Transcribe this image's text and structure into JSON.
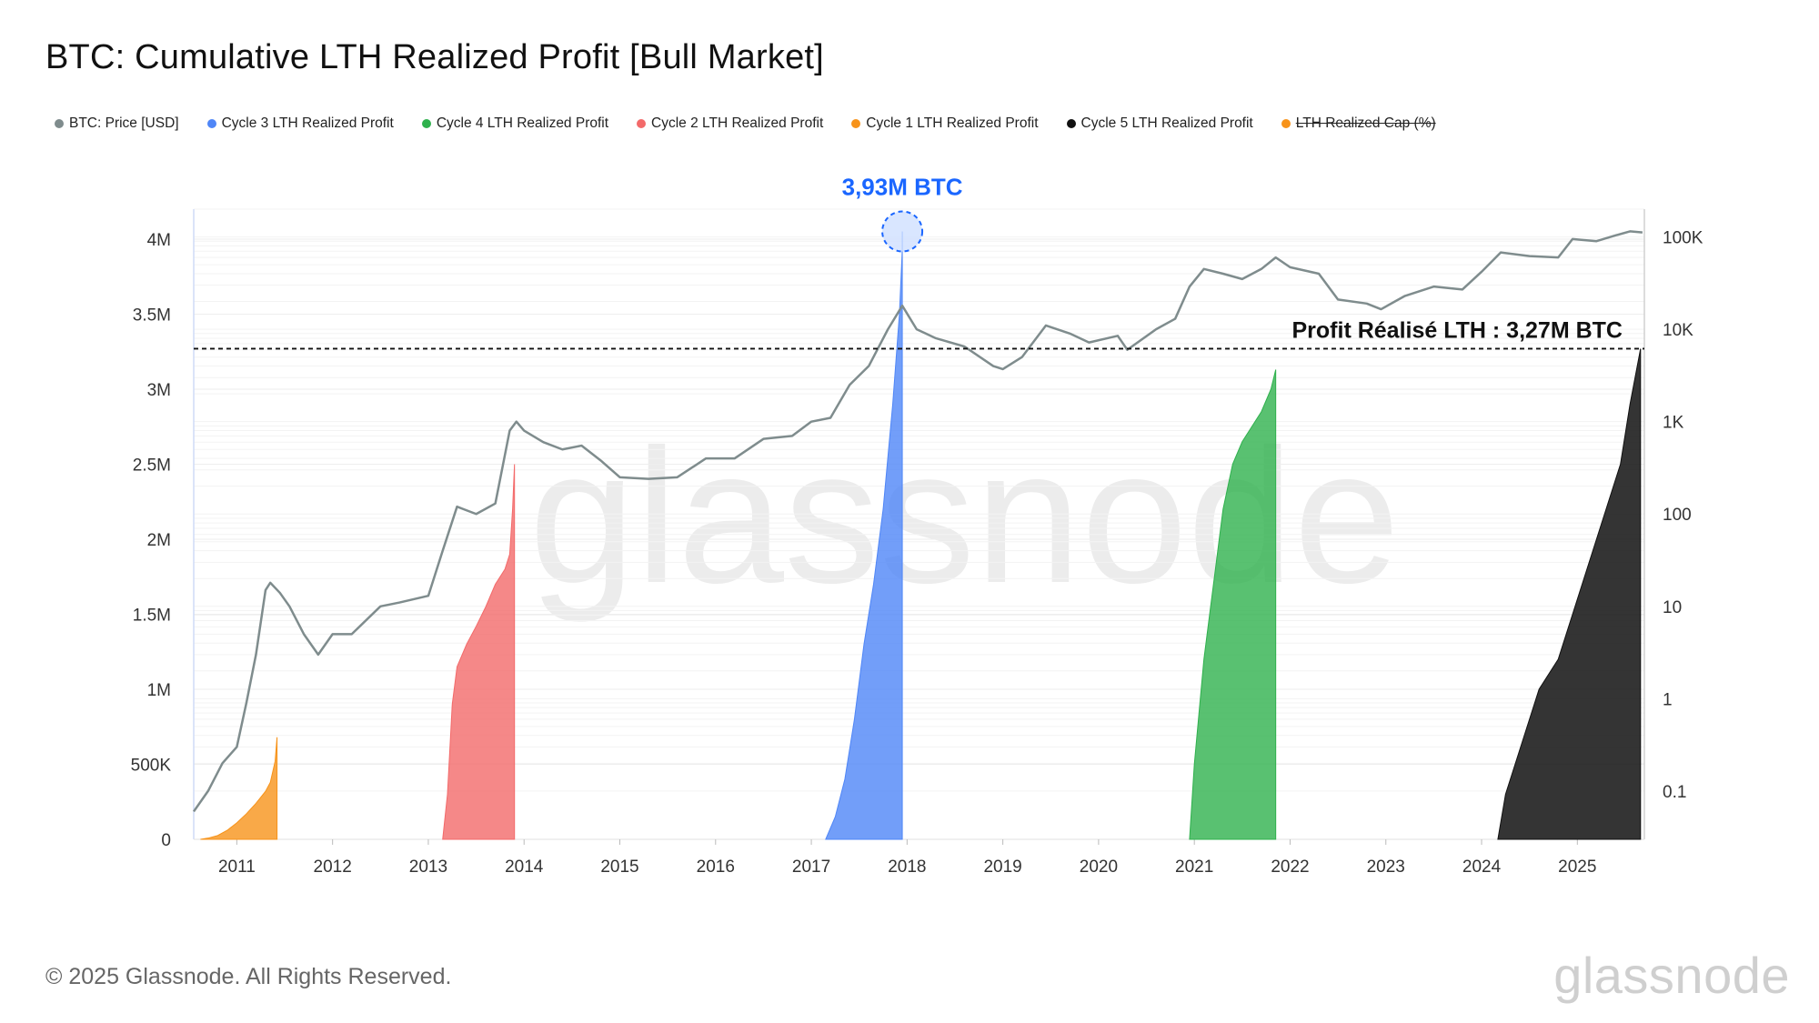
{
  "title": "BTC: Cumulative LTH Realized Profit [Bull Market]",
  "legend": [
    {
      "label": "BTC: Price [USD]",
      "color": "#7f8c8d",
      "off": false
    },
    {
      "label": "Cycle 3 LTH Realized Profit",
      "color": "#4f86f7",
      "off": false
    },
    {
      "label": "Cycle 4 LTH Realized Profit",
      "color": "#2fb14d",
      "off": false
    },
    {
      "label": "Cycle 2 LTH Realized Profit",
      "color": "#f36a6a",
      "off": false
    },
    {
      "label": "Cycle 1 LTH Realized Profit",
      "color": "#f7931a",
      "off": false
    },
    {
      "label": "Cycle 5 LTH Realized Profit",
      "color": "#111111",
      "off": false
    },
    {
      "label": "LTH Realized Cap (%)",
      "color": "#f7931a",
      "off": true
    }
  ],
  "footer": {
    "copyright": "© 2025 Glassnode. All Rights Reserved.",
    "logo": "glassnode",
    "watermark": "glassnode"
  },
  "chart_data": {
    "type": "area",
    "x_range": [
      2010.55,
      2025.7
    ],
    "y_left": {
      "range": [
        0,
        4200000
      ],
      "ticks": [
        0,
        500000,
        1000000,
        1500000,
        2000000,
        2500000,
        3000000,
        3500000,
        4000000
      ],
      "tick_labels": [
        "0",
        "500K",
        "1M",
        "1.5M",
        "2M",
        "2.5M",
        "3M",
        "3.5M",
        "4M"
      ]
    },
    "y_right": {
      "scale": "log",
      "range": [
        0.03,
        200000
      ],
      "ticks": [
        0.1,
        1,
        10,
        100,
        1000,
        10000,
        100000
      ],
      "tick_labels": [
        "0.1",
        "1",
        "10",
        "100",
        "1K",
        "10K",
        "100K"
      ]
    },
    "x_ticks": [
      2011,
      2012,
      2013,
      2014,
      2015,
      2016,
      2017,
      2018,
      2019,
      2020,
      2021,
      2022,
      2023,
      2024,
      2025
    ],
    "x_tick_labels": [
      "2011",
      "2012",
      "2013",
      "2014",
      "2015",
      "2016",
      "2017",
      "2018",
      "2019",
      "2020",
      "2021",
      "2022",
      "2023",
      "2024",
      "2025"
    ],
    "series": [
      {
        "name": "Cycle 1 LTH Realized Profit",
        "color": "#f7931a",
        "x": [
          2010.62,
          2010.7,
          2010.8,
          2010.9,
          2011.0,
          2011.1,
          2011.2,
          2011.3,
          2011.35,
          2011.4,
          2011.42
        ],
        "y": [
          0,
          8000,
          25000,
          60000,
          110000,
          170000,
          240000,
          320000,
          380000,
          520000,
          680000
        ]
      },
      {
        "name": "Cycle 2 LTH Realized Profit",
        "color": "#f36a6a",
        "x": [
          2013.15,
          2013.2,
          2013.25,
          2013.3,
          2013.4,
          2013.5,
          2013.6,
          2013.7,
          2013.8,
          2013.85,
          2013.88,
          2013.9
        ],
        "y": [
          0,
          300000,
          900000,
          1150000,
          1300000,
          1420000,
          1550000,
          1700000,
          1800000,
          1900000,
          2200000,
          2500000
        ]
      },
      {
        "name": "Cycle 3 LTH Realized Profit",
        "color": "#4f86f7",
        "x": [
          2017.15,
          2017.25,
          2017.35,
          2017.45,
          2017.55,
          2017.65,
          2017.75,
          2017.85,
          2017.92,
          2017.95
        ],
        "y": [
          0,
          150000,
          400000,
          800000,
          1300000,
          1700000,
          2200000,
          2900000,
          3500000,
          3930000
        ]
      },
      {
        "name": "Cycle 4 LTH Realized Profit",
        "color": "#2fb14d",
        "x": [
          2020.95,
          2021.0,
          2021.1,
          2021.2,
          2021.3,
          2021.4,
          2021.5,
          2021.6,
          2021.7,
          2021.8,
          2021.85
        ],
        "y": [
          0,
          500000,
          1200000,
          1700000,
          2200000,
          2500000,
          2650000,
          2750000,
          2850000,
          3000000,
          3130000
        ]
      },
      {
        "name": "Cycle 5 LTH Realized Profit",
        "color": "#111111",
        "x": [
          2024.17,
          2024.25,
          2024.4,
          2024.55,
          2024.6,
          2024.8,
          2024.95,
          2025.1,
          2025.3,
          2025.45,
          2025.55,
          2025.66
        ],
        "y": [
          0,
          300000,
          600000,
          900000,
          1000000,
          1200000,
          1500000,
          1800000,
          2200000,
          2500000,
          2900000,
          3270000
        ]
      },
      {
        "name": "BTC: Price [USD]",
        "color": "#7f8c8d",
        "axis": "right",
        "x": [
          2010.55,
          2010.7,
          2010.85,
          2011.0,
          2011.1,
          2011.2,
          2011.3,
          2011.35,
          2011.45,
          2011.55,
          2011.7,
          2011.85,
          2012.0,
          2012.2,
          2012.5,
          2012.7,
          2013.0,
          2013.15,
          2013.3,
          2013.5,
          2013.7,
          2013.85,
          2013.92,
          2014.0,
          2014.2,
          2014.4,
          2014.6,
          2014.8,
          2015.0,
          2015.3,
          2015.6,
          2015.9,
          2016.2,
          2016.5,
          2016.8,
          2017.0,
          2017.2,
          2017.4,
          2017.6,
          2017.8,
          2017.95,
          2018.1,
          2018.3,
          2018.6,
          2018.9,
          2019.0,
          2019.2,
          2019.45,
          2019.7,
          2019.9,
          2020.2,
          2020.3,
          2020.6,
          2020.8,
          2020.95,
          2021.1,
          2021.3,
          2021.5,
          2021.7,
          2021.85,
          2022.0,
          2022.3,
          2022.5,
          2022.8,
          2022.95,
          2023.2,
          2023.5,
          2023.8,
          2024.0,
          2024.2,
          2024.5,
          2024.8,
          2024.95,
          2025.2,
          2025.4,
          2025.55,
          2025.68
        ],
        "y": [
          0.06,
          0.1,
          0.2,
          0.3,
          0.9,
          3,
          15,
          18,
          14,
          10,
          5,
          3,
          5,
          5,
          10,
          11,
          13,
          40,
          120,
          100,
          130,
          800,
          1000,
          800,
          600,
          500,
          550,
          380,
          250,
          240,
          250,
          400,
          400,
          650,
          700,
          1000,
          1100,
          2500,
          4000,
          10000,
          18000,
          10000,
          8000,
          6500,
          4000,
          3700,
          5000,
          11000,
          9000,
          7200,
          8500,
          6000,
          10000,
          13000,
          29000,
          45000,
          40000,
          35000,
          45000,
          60000,
          47000,
          40000,
          21000,
          19000,
          16500,
          23000,
          29000,
          27000,
          42000,
          68000,
          62000,
          60000,
          95000,
          90000,
          104000,
          115000,
          112000
        ]
      }
    ],
    "annotations": [
      {
        "text": "3,93M BTC",
        "color": "#1a66ff",
        "x": 2017.95,
        "y": 3930000
      },
      {
        "text": "Profit Réalisé LTH : 3,27M BTC",
        "color": "#111111",
        "y": 3270000
      }
    ]
  }
}
